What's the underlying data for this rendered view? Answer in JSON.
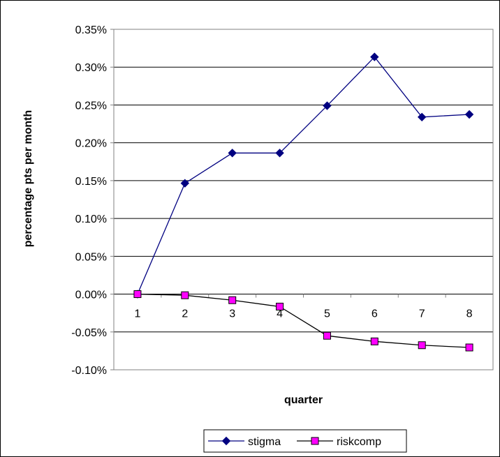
{
  "chart_data": {
    "type": "line",
    "title": "",
    "xlabel": "quarter",
    "ylabel": "percentage pts per month",
    "categories": [
      "1",
      "2",
      "3",
      "4",
      "5",
      "6",
      "7",
      "8"
    ],
    "ylim": [
      -0.1,
      0.35
    ],
    "y_ticks": [
      "0.35%",
      "0.30%",
      "0.25%",
      "0.20%",
      "0.15%",
      "0.10%",
      "0.05%",
      "0.00%",
      "-0.05%",
      "-0.10%"
    ],
    "grid": "horizontal",
    "legend_position": "bottom",
    "series": [
      {
        "name": "stigma",
        "color": "#000080",
        "marker": "diamond",
        "values": [
          0.0,
          0.1465,
          0.1865,
          0.1865,
          0.249,
          0.3135,
          0.234,
          0.2375
        ]
      },
      {
        "name": "riskcomp",
        "color": "#000000",
        "marker_fill": "#ff00ff",
        "marker": "square",
        "values": [
          0.0,
          -0.0015,
          -0.008,
          -0.0165,
          -0.055,
          -0.0625,
          -0.0675,
          -0.0705
        ]
      }
    ]
  }
}
